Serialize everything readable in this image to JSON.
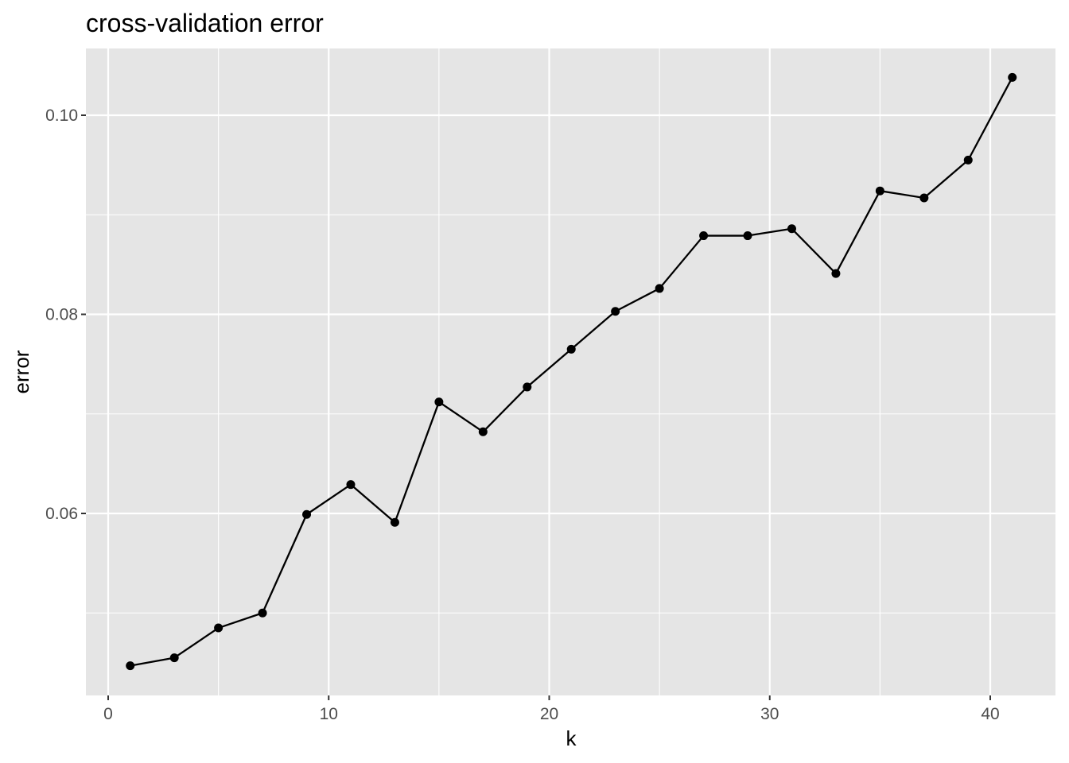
{
  "chart_data": {
    "type": "line",
    "title": "cross-validation error",
    "xlabel": "k",
    "ylabel": "error",
    "xlim": [
      -0.0,
      42.0
    ],
    "ylim": [
      0.0435,
      0.1065
    ],
    "x_ticks": [
      0,
      10,
      20,
      30,
      40
    ],
    "x_tick_labels": [
      "0",
      "10",
      "20",
      "30",
      "40"
    ],
    "y_ticks": [
      0.06,
      0.08,
      0.1
    ],
    "y_tick_labels": [
      "0.06",
      "0.08",
      "0.10"
    ],
    "y_minor_ticks": [
      0.05,
      0.07,
      0.09
    ],
    "x_minor_ticks": [
      5,
      15,
      25,
      35
    ],
    "grid": true,
    "legend": "none",
    "colors": {
      "panel_background": "#e5e5e5",
      "grid": "#ffffff",
      "line": "#000000",
      "point": "#000000",
      "tick_label": "#4d4d4d"
    },
    "series": [
      {
        "x": [
          1,
          3,
          5,
          7,
          9,
          11,
          13,
          15,
          17,
          19,
          21,
          23,
          25,
          27,
          29,
          31,
          33,
          35,
          37,
          39,
          41
        ],
        "values": [
          0.0447,
          0.0455,
          0.0485,
          0.05,
          0.0599,
          0.0629,
          0.0591,
          0.0712,
          0.0682,
          0.0727,
          0.0765,
          0.0803,
          0.0826,
          0.0879,
          0.0879,
          0.0886,
          0.0841,
          0.0924,
          0.0917,
          0.0955,
          0.1038
        ]
      }
    ]
  }
}
